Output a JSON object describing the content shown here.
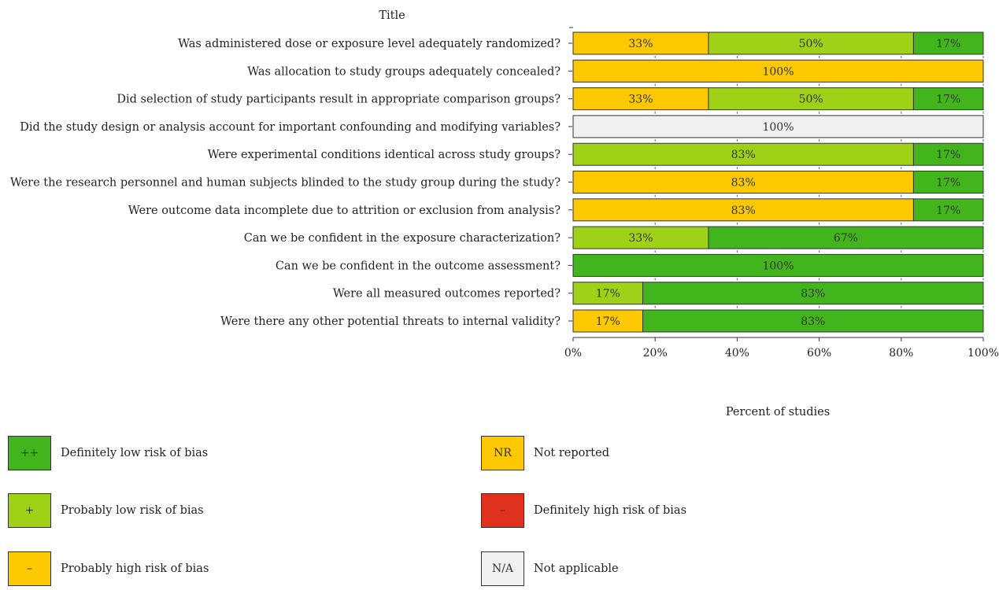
{
  "chart_data": {
    "type": "bar",
    "orientation": "horizontal",
    "stacked": true,
    "title": "Title",
    "xlabel": "Percent of studies",
    "ylabel": "",
    "xlim": [
      0,
      100
    ],
    "xticks": [
      "0%",
      "20%",
      "40%",
      "60%",
      "80%",
      "100%"
    ],
    "grid": false,
    "legend_position": "bottom",
    "categories": [
      "Was administered dose or exposure level adequately randomized?",
      "Was allocation to study groups adequately concealed?",
      "Did selection of study participants result in appropriate comparison groups?",
      "Did the study design or analysis account for important confounding and modifying variables?",
      "Were experimental conditions identical across study groups?",
      "Were the research personnel and human subjects blinded to the study group during the study?",
      "Were outcome data incomplete due to attrition or exclusion from analysis?",
      "Can we be confident in the exposure characterization?",
      "Can we be confident in the outcome assessment?",
      "Were all measured outcomes reported?",
      "Were there any other potential threats to internal validity?"
    ],
    "series": [
      {
        "key": "nr",
        "values": [
          33,
          100,
          33,
          0,
          0,
          83,
          83,
          0,
          0,
          0,
          17
        ]
      },
      {
        "key": "prob_low",
        "values": [
          50,
          0,
          50,
          0,
          83,
          0,
          0,
          33,
          0,
          17,
          0
        ]
      },
      {
        "key": "def_low",
        "values": [
          17,
          0,
          17,
          0,
          17,
          17,
          17,
          67,
          100,
          83,
          83
        ]
      },
      {
        "key": "na",
        "values": [
          0,
          0,
          0,
          100,
          0,
          0,
          0,
          0,
          0,
          0,
          0
        ]
      }
    ],
    "colors": {
      "def_low": "#43b51c",
      "prob_low": "#9fd117",
      "nr": "#fcc800",
      "prob_high": "#fcc800",
      "def_high": "#e0311e",
      "na": "#f0f0f0"
    }
  },
  "legend": [
    {
      "key": "def_low",
      "code": "++",
      "label": "Definitely low risk of bias"
    },
    {
      "key": "prob_low",
      "code": "+",
      "label": "Probably low risk of bias"
    },
    {
      "key": "prob_high",
      "code": "–",
      "label": "Probably high risk of bias"
    },
    {
      "key": "nr",
      "code": "NR",
      "label": "Not reported"
    },
    {
      "key": "def_high",
      "code": "–",
      "label": "Definitely high risk of bias"
    },
    {
      "key": "na",
      "code": "N/A",
      "label": "Not applicable"
    }
  ]
}
